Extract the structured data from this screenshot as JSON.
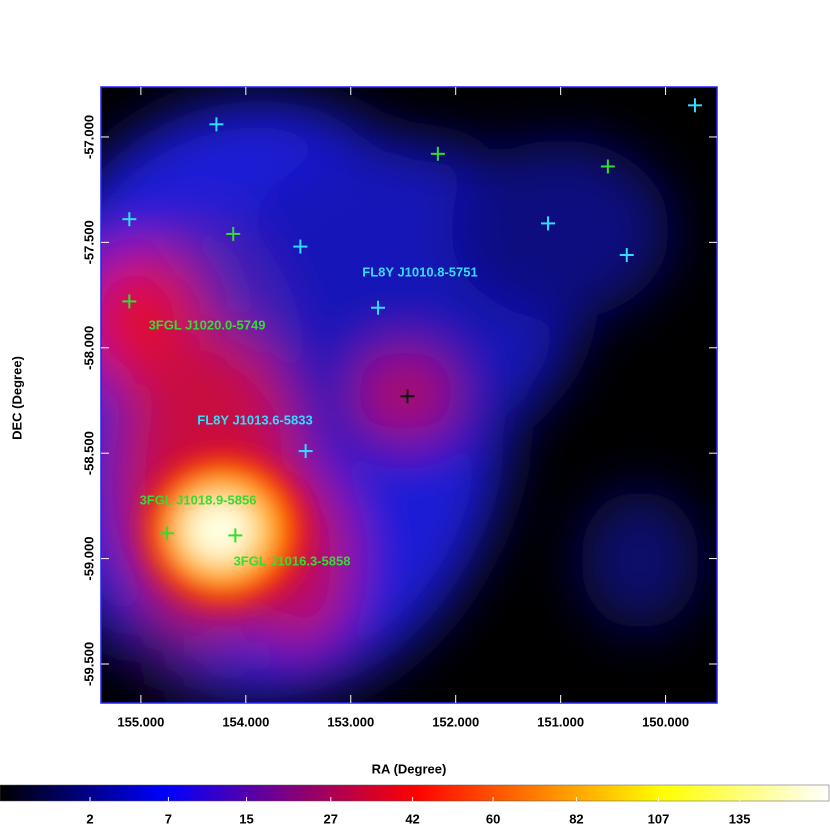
{
  "chart_data": {
    "type": "scatter",
    "xlabel": "RA (Degree)",
    "ylabel": "DEC (Degree)",
    "xlim": [
      155.38,
      149.51
    ],
    "ylim": [
      -56.763,
      -59.685
    ],
    "xticks": [
      {
        "value": 155,
        "label": "155.000"
      },
      {
        "value": 154,
        "label": "154.000"
      },
      {
        "value": 153,
        "label": "153.000"
      },
      {
        "value": 152,
        "label": "152.000"
      },
      {
        "value": 151,
        "label": "151.000"
      },
      {
        "value": 150,
        "label": "150.000"
      }
    ],
    "yticks": [
      {
        "value": -57,
        "label": "-57.000"
      },
      {
        "value": -57.5,
        "label": "-57.500"
      },
      {
        "value": -58,
        "label": "-58.000"
      },
      {
        "value": -58.5,
        "label": "-58.500"
      },
      {
        "value": -59,
        "label": "-59.000"
      },
      {
        "value": -59.5,
        "label": "-59.500"
      }
    ],
    "x": [
      149.72,
      154.28,
      152.17,
      150.55,
      155.11,
      154.12,
      153.48,
      151.12,
      150.37,
      155.11,
      152.74,
      152.46,
      153.43,
      154.75,
      154.1
    ],
    "y": [
      -56.85,
      -56.94,
      -57.08,
      -57.14,
      -57.39,
      -57.46,
      -57.52,
      -57.41,
      -57.56,
      -57.78,
      -57.81,
      -58.23,
      -58.49,
      -58.88,
      -58.89
    ],
    "colors": [
      "#33ddff",
      "#33ddff",
      "#33dd33",
      "#33dd33",
      "#33ddff",
      "#33dd33",
      "#33ddff",
      "#33ddff",
      "#33ddff",
      "#33dd33",
      "#33ddff",
      "#111111",
      "#33ddff",
      "#33dd33",
      "#33dd33"
    ],
    "annotations": [
      {
        "text": "FL8Y J1010.8-5751",
        "color": "#33ddff"
      },
      {
        "text": "3FGL J1020.0-5749",
        "color": "#33dd33"
      },
      {
        "text": "FL8Y J1013.6-5833",
        "color": "#33ddff"
      },
      {
        "text": "3FGL J1018.9-5856",
        "color": "#33dd33"
      },
      {
        "text": "3FGL J1016.3-5858",
        "color": "#33dd33"
      }
    ],
    "colorbar": {
      "lim": [
        0,
        170
      ],
      "scale": "sqrt",
      "ticks": [
        2,
        7,
        15,
        27,
        42,
        60,
        82,
        107,
        135
      ]
    }
  }
}
